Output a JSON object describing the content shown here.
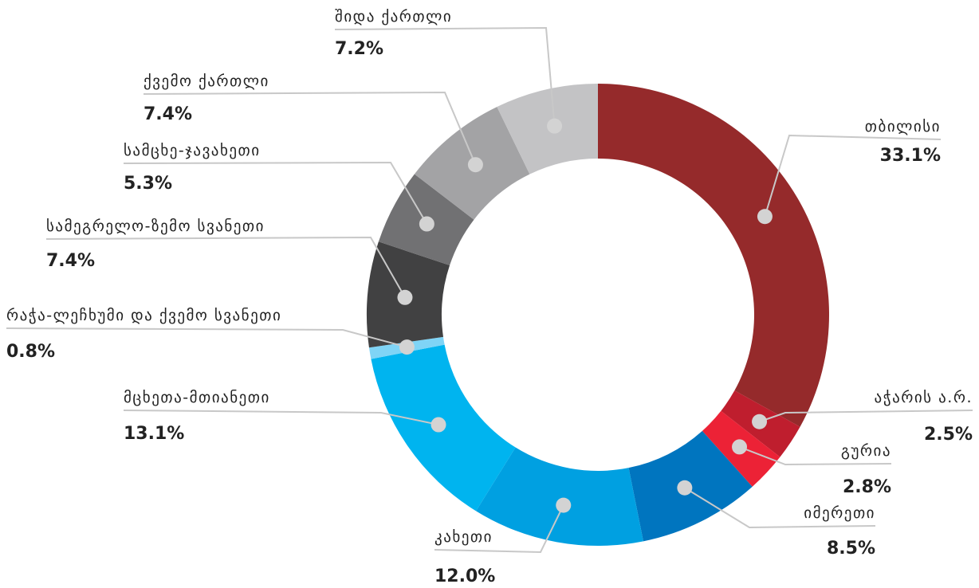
{
  "chart_data": {
    "type": "pie",
    "variant": "donut",
    "title": "",
    "slices": [
      {
        "label": "თბილისი",
        "value": 33.1,
        "display": "33.1%",
        "color": "#952a2b"
      },
      {
        "label": "აჭარის ა.რ.",
        "value": 2.5,
        "display": "2.5%",
        "color": "#bf1e2e"
      },
      {
        "label": "გურია",
        "value": 2.8,
        "display": "2.8%",
        "color": "#ec2236"
      },
      {
        "label": "იმერეთი",
        "value": 8.5,
        "display": "8.5%",
        "color": "#0075bf"
      },
      {
        "label": "კახეთი",
        "value": 12.0,
        "display": "12.0%",
        "color": "#00a0e1"
      },
      {
        "label": "მცხეთა-მთიანეთი",
        "value": 13.1,
        "display": "13.1%",
        "color": "#00b4ef"
      },
      {
        "label": "რაჭა-ლეჩხუმი და ქვემო სვანეთი",
        "value": 0.8,
        "display": "0.8%",
        "color": "#7fd4f6"
      },
      {
        "label": "სამეგრელო-ზემო სვანეთი",
        "value": 7.4,
        "display": "7.4%",
        "color": "#414142"
      },
      {
        "label": "სამცხე-ჯავახეთი",
        "value": 5.3,
        "display": "5.3%",
        "color": "#717173"
      },
      {
        "label": "ქვემო ქართლი",
        "value": 7.4,
        "display": "7.4%",
        "color": "#a3a3a5"
      },
      {
        "label": "შიდა ქართლი",
        "value": 7.2,
        "display": "7.2%",
        "color": "#c3c3c5"
      }
    ],
    "legend": "callout labels"
  }
}
